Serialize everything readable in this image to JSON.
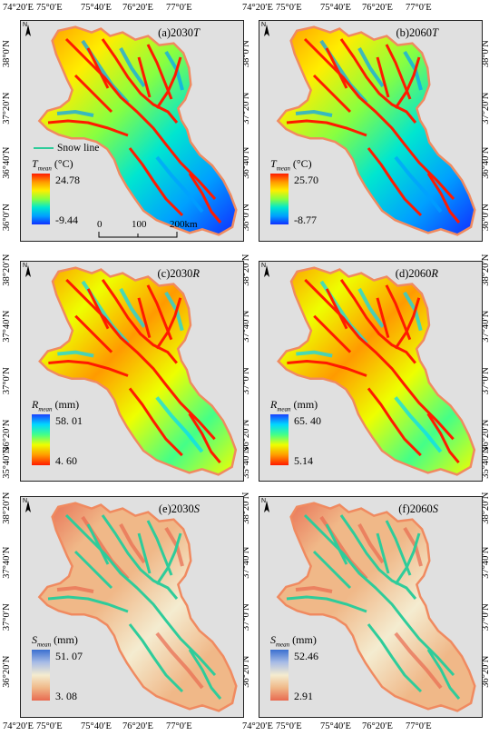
{
  "axes": {
    "top_lon": [
      "74°20′E",
      "75°0′E",
      "75°40′E",
      "76°20′E",
      "77°0′E"
    ],
    "bottom_lon": [
      "74°20′E",
      "75°0′E",
      "75°40′E",
      "76°20′E",
      "77°0′E"
    ],
    "left_lat": [
      [
        "38°0′N",
        "37°20′N",
        "36°40′N",
        "36°0′N"
      ],
      [
        "38°20′N",
        "37°40′N",
        "37°0′N",
        "36°20′N",
        "35°40′N"
      ],
      [
        "38°20′N",
        "37°40′N",
        "37°0′N",
        "36°20′N"
      ]
    ],
    "right_lat": [
      [
        "38°0′N",
        "37°20′N",
        "36°40′N",
        "36°0′N"
      ],
      [
        "38°20′N",
        "37°40′N",
        "37°0′N",
        "36°20′N",
        "35°40′N"
      ],
      [
        "38°20′N",
        "37°40′N",
        "37°0′N",
        "36°20′N"
      ]
    ]
  },
  "north_label": "N",
  "panels": [
    {
      "id": "a",
      "prefix": "(a)2030",
      "var": "T",
      "legend_var": "T",
      "legend_sub": "mean",
      "legend_unit": " (°C)",
      "max": "24.78",
      "min": "-9.44",
      "ramp": "temp"
    },
    {
      "id": "b",
      "prefix": "(b)2060",
      "var": "T",
      "legend_var": "T",
      "legend_sub": "mean",
      "legend_unit": " (°C)",
      "max": "25.70",
      "min": "-8.77",
      "ramp": "temp"
    },
    {
      "id": "c",
      "prefix": "(c)2030",
      "var": "R",
      "legend_var": "R",
      "legend_sub": "mean",
      "legend_unit": " (mm)",
      "max": "58. 01",
      "min": "4. 60",
      "ramp": "rain"
    },
    {
      "id": "d",
      "prefix": "(d)2060",
      "var": "R",
      "legend_var": "R",
      "legend_sub": "mean",
      "legend_unit": " (mm)",
      "max": "65. 40",
      "min": "5.14",
      "ramp": "rain"
    },
    {
      "id": "e",
      "prefix": "(e)2030",
      "var": "S",
      "legend_var": "S",
      "legend_sub": "mean",
      "legend_unit": " (mm)",
      "max": "51. 07",
      "min": "3. 08",
      "ramp": "snow"
    },
    {
      "id": "f",
      "prefix": "(f)2060",
      "var": "S",
      "legend_var": "S",
      "legend_sub": "mean",
      "legend_unit": " (mm)",
      "max": "52.46",
      "min": "2.91",
      "ramp": "snow"
    }
  ],
  "snow_line_label": "Snow line",
  "scale_bar": {
    "labels": [
      "0",
      "100",
      "200km"
    ]
  },
  "colors": {
    "panel_bg": "#e0e0e0",
    "snow_line": "#2ecc9a",
    "boundary_outer": "#f08a60",
    "temp_ramp": [
      "#ff1a00",
      "#ff9a00",
      "#ffee00",
      "#88ff40",
      "#00e6d0",
      "#00a0ff",
      "#1030ff"
    ],
    "rain_ramp": [
      "#1a40ff",
      "#00d8ff",
      "#44ff88",
      "#eeff00",
      "#ff9a00",
      "#ff1a00"
    ],
    "snow_ramp": [
      "#3a6fd0",
      "#a8bce6",
      "#f4ecd0",
      "#f0b888",
      "#e86a50"
    ]
  }
}
